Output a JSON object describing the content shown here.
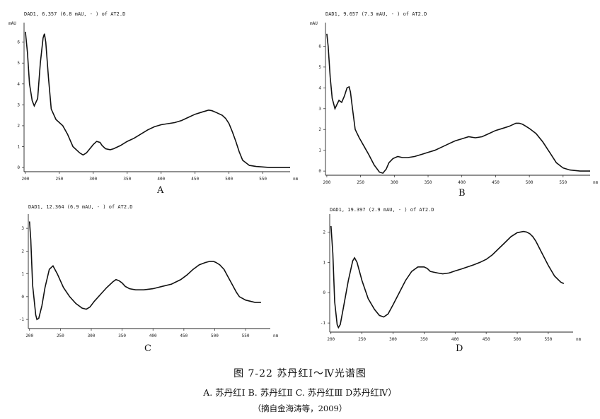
{
  "figure": {
    "caption": "图 7-22   苏丹红Ⅰ～Ⅳ光谱图",
    "subcaption": "A. 苏丹红Ⅰ   B. 苏丹红Ⅱ   C. 苏丹红Ⅲ   D苏丹红Ⅳ）",
    "source": "（摘自金海涛等，2009）"
  },
  "chart_data": [
    {
      "panel": "A",
      "type": "line",
      "header": "DAD1, 6.357 (6.8 mAU, - ) of AT2.D",
      "ylabel": "mAU",
      "xunit": "nm",
      "xlim": [
        198,
        590
      ],
      "ylim": [
        -0.2,
        6.8
      ],
      "xticks": [
        200,
        250,
        300,
        350,
        400,
        450,
        500,
        550
      ],
      "yticks": [
        0,
        1,
        2,
        3,
        4,
        5,
        6
      ],
      "x": [
        200,
        203,
        206,
        210,
        213,
        218,
        222,
        226,
        228,
        230,
        234,
        238,
        245,
        255,
        262,
        270,
        280,
        285,
        290,
        295,
        300,
        305,
        310,
        313,
        318,
        325,
        330,
        340,
        350,
        360,
        370,
        380,
        390,
        400,
        410,
        420,
        430,
        440,
        450,
        460,
        470,
        475,
        480,
        490,
        495,
        500,
        505,
        510,
        515,
        520,
        530,
        540,
        560,
        575,
        590
      ],
      "y": [
        6.5,
        5.5,
        4.0,
        3.2,
        2.95,
        3.3,
        5.0,
        6.2,
        6.4,
        6.0,
        4.3,
        2.8,
        2.3,
        2.0,
        1.6,
        1.0,
        0.7,
        0.6,
        0.7,
        0.9,
        1.1,
        1.25,
        1.2,
        1.05,
        0.9,
        0.85,
        0.9,
        1.05,
        1.25,
        1.4,
        1.6,
        1.8,
        1.95,
        2.05,
        2.1,
        2.15,
        2.25,
        2.4,
        2.55,
        2.65,
        2.75,
        2.72,
        2.65,
        2.5,
        2.35,
        2.1,
        1.7,
        1.25,
        0.75,
        0.35,
        0.1,
        0.05,
        0.0,
        0.0,
        0.0
      ]
    },
    {
      "panel": "B",
      "type": "line",
      "header": "DAD1, 9.657 (7.3 mAU, - ) of AT2.D",
      "ylabel": "mAU",
      "xunit": "nm",
      "xlim": [
        198,
        590
      ],
      "ylim": [
        -0.2,
        7.0
      ],
      "xticks": [
        200,
        250,
        300,
        350,
        400,
        450,
        500,
        550
      ],
      "yticks": [
        0,
        1,
        2,
        3,
        4,
        5,
        6
      ],
      "x": [
        200,
        202,
        205,
        208,
        212,
        215,
        218,
        222,
        226,
        230,
        233,
        235,
        238,
        242,
        248,
        255,
        262,
        270,
        278,
        283,
        288,
        292,
        298,
        305,
        312,
        320,
        330,
        340,
        350,
        360,
        370,
        380,
        390,
        400,
        410,
        420,
        430,
        440,
        450,
        460,
        470,
        480,
        485,
        490,
        495,
        500,
        510,
        520,
        530,
        540,
        550,
        560,
        575,
        590
      ],
      "y": [
        6.6,
        6.0,
        4.5,
        3.5,
        3.0,
        3.2,
        3.4,
        3.3,
        3.6,
        4.0,
        4.05,
        3.8,
        3.0,
        2.0,
        1.6,
        1.2,
        0.8,
        0.3,
        -0.05,
        -0.1,
        0.1,
        0.4,
        0.6,
        0.7,
        0.65,
        0.65,
        0.7,
        0.8,
        0.9,
        1.0,
        1.15,
        1.3,
        1.45,
        1.55,
        1.65,
        1.6,
        1.65,
        1.8,
        1.95,
        2.05,
        2.15,
        2.3,
        2.3,
        2.25,
        2.15,
        2.05,
        1.8,
        1.4,
        0.9,
        0.4,
        0.15,
        0.05,
        0.0,
        0.0
      ]
    },
    {
      "panel": "C",
      "type": "line",
      "header": "DAD1, 12.364 (6.9 mAU, - ) of AT2.D",
      "ylabel": "mAU",
      "xunit": "nm",
      "xlim": [
        198,
        590
      ],
      "ylim": [
        -1.4,
        3.5
      ],
      "xticks": [
        200,
        250,
        300,
        350,
        400,
        450,
        500,
        550
      ],
      "yticks": [
        -1,
        0,
        1,
        2,
        3
      ],
      "x": [
        200,
        202,
        205,
        210,
        212,
        215,
        220,
        225,
        232,
        238,
        245,
        255,
        265,
        275,
        285,
        292,
        298,
        305,
        315,
        325,
        335,
        340,
        345,
        350,
        355,
        362,
        372,
        385,
        400,
        415,
        430,
        445,
        455,
        465,
        475,
        485,
        492,
        498,
        502,
        508,
        515,
        520,
        528,
        535,
        540,
        550,
        565,
        575
      ],
      "y": [
        3.3,
        2.5,
        0.5,
        -0.8,
        -1.0,
        -0.95,
        -0.4,
        0.4,
        1.2,
        1.35,
        1.0,
        0.4,
        0.0,
        -0.3,
        -0.5,
        -0.55,
        -0.45,
        -0.2,
        0.1,
        0.4,
        0.65,
        0.75,
        0.7,
        0.6,
        0.45,
        0.35,
        0.3,
        0.3,
        0.35,
        0.45,
        0.55,
        0.75,
        0.95,
        1.2,
        1.4,
        1.5,
        1.55,
        1.55,
        1.5,
        1.4,
        1.2,
        0.95,
        0.55,
        0.2,
        0.0,
        -0.15,
        -0.25,
        -0.25
      ]
    },
    {
      "panel": "D",
      "type": "line",
      "header": "DAD1, 19.397 (2.9 mAU, - ) of AT2.D",
      "ylabel": "mAU",
      "xunit": "nm",
      "xlim": [
        198,
        590
      ],
      "ylim": [
        -1.3,
        2.5
      ],
      "xticks": [
        200,
        250,
        300,
        350,
        400,
        450,
        500,
        550
      ],
      "yticks": [
        -1,
        0,
        1,
        2
      ],
      "x": [
        200,
        203,
        206,
        210,
        212,
        215,
        220,
        228,
        235,
        238,
        242,
        250,
        260,
        270,
        278,
        285,
        292,
        300,
        310,
        320,
        330,
        340,
        350,
        355,
        360,
        365,
        372,
        380,
        390,
        400,
        410,
        420,
        430,
        440,
        450,
        460,
        470,
        480,
        490,
        500,
        510,
        515,
        520,
        525,
        530,
        540,
        550,
        560,
        570,
        575
      ],
      "y": [
        2.2,
        1.3,
        -0.3,
        -1.05,
        -1.15,
        -1.05,
        -0.5,
        0.4,
        1.05,
        1.15,
        1.0,
        0.4,
        -0.2,
        -0.55,
        -0.75,
        -0.8,
        -0.7,
        -0.4,
        0.0,
        0.4,
        0.7,
        0.85,
        0.85,
        0.8,
        0.7,
        0.68,
        0.65,
        0.62,
        0.65,
        0.72,
        0.78,
        0.85,
        0.92,
        1.0,
        1.1,
        1.25,
        1.45,
        1.65,
        1.85,
        1.98,
        2.02,
        2.0,
        1.95,
        1.85,
        1.7,
        1.3,
        0.9,
        0.55,
        0.35,
        0.3
      ]
    }
  ]
}
